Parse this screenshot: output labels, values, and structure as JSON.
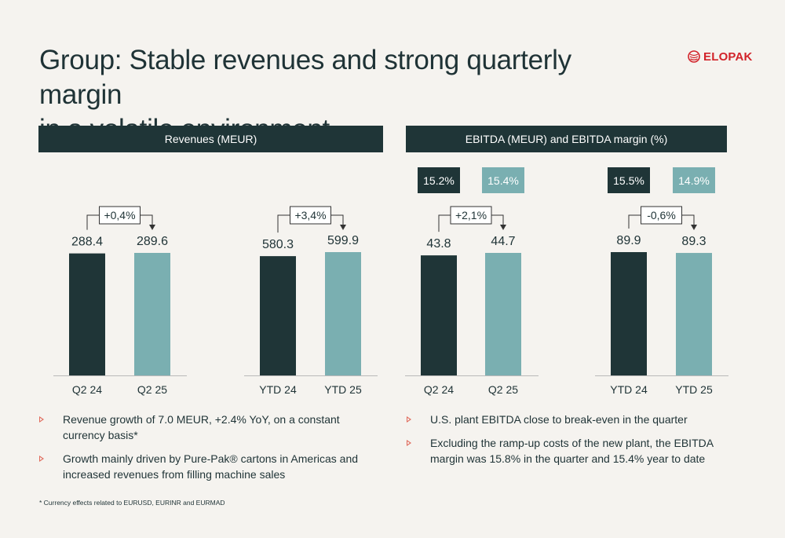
{
  "page": {
    "title_line1": "Group: Stable revenues and strong quarterly margin",
    "title_line2": "in a volatile environment",
    "logo_text": "ELOPAK",
    "footnote": "* Currency effects related to EURUSD, EURINR and EURMAD"
  },
  "colors": {
    "dark": "#1f3537",
    "light": "#7aafb1",
    "accent": "#e06a5c",
    "brand_red": "#d2232a"
  },
  "panels": {
    "revenues_header": "Revenues (MEUR)",
    "ebitda_header": "EBITDA (MEUR) and EBITDA margin (%)"
  },
  "chart_data": [
    {
      "type": "bar",
      "panel": "Revenues (MEUR)",
      "categories": [
        "Q2 24",
        "Q2 25"
      ],
      "values": [
        288.4,
        289.6
      ],
      "value_labels": [
        "288.4",
        "289.6"
      ],
      "change_label": "+0,4%"
    },
    {
      "type": "bar",
      "panel": "Revenues (MEUR)",
      "categories": [
        "YTD 24",
        "YTD 25"
      ],
      "values": [
        580.3,
        599.9
      ],
      "value_labels": [
        "580.3",
        "599.9"
      ],
      "change_label": "+3,4%"
    },
    {
      "type": "bar",
      "panel": "EBITDA (MEUR) and EBITDA margin (%)",
      "categories": [
        "Q2 24",
        "Q2 25"
      ],
      "values": [
        43.8,
        44.7
      ],
      "value_labels": [
        "43.8",
        "44.7"
      ],
      "margins": [
        "15.2%",
        "15.4%"
      ],
      "change_label": "+2,1%"
    },
    {
      "type": "bar",
      "panel": "EBITDA (MEUR) and EBITDA margin (%)",
      "categories": [
        "YTD 24",
        "YTD 25"
      ],
      "values": [
        89.9,
        89.3
      ],
      "value_labels": [
        "89.9",
        "89.3"
      ],
      "margins": [
        "15.5%",
        "14.9%"
      ],
      "change_label": "-0,6%"
    }
  ],
  "bullets_left": [
    "Revenue growth of 7.0 MEUR, +2.4% YoY, on a constant currency basis*",
    "Growth mainly driven by Pure-Pak® cartons in Americas and increased revenues from filling machine sales"
  ],
  "bullets_right": [
    "U.S. plant EBITDA close to break-even in the quarter",
    "Excluding the ramp-up costs of the new plant, the EBITDA margin was 15.8% in the quarter and 15.4% year to date"
  ]
}
